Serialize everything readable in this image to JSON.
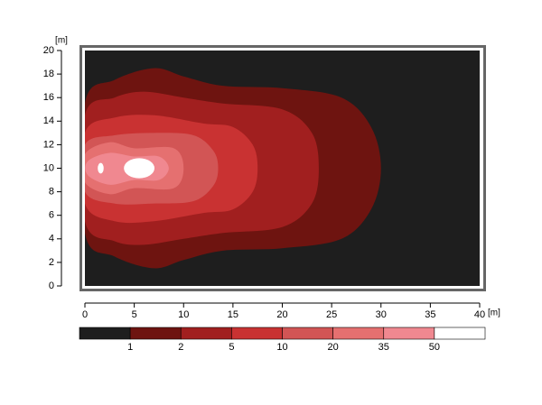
{
  "chart_data": {
    "type": "contour",
    "x_label": "[m]",
    "y_label": "[m]",
    "xlim": [
      0,
      40
    ],
    "xticks": [
      0,
      5,
      10,
      15,
      20,
      25,
      30,
      35,
      40
    ],
    "ylim": [
      0,
      20
    ],
    "yticks": [
      0,
      2,
      4,
      6,
      8,
      10,
      12,
      14,
      16,
      18,
      20
    ],
    "levels": [
      1,
      2,
      5,
      10,
      20,
      35,
      50
    ],
    "colors": [
      "#1e1e1e",
      "#6e1410",
      "#a11f1f",
      "#c93232",
      "#d25555",
      "#e57070",
      "#f08890",
      "#ffffff"
    ]
  }
}
